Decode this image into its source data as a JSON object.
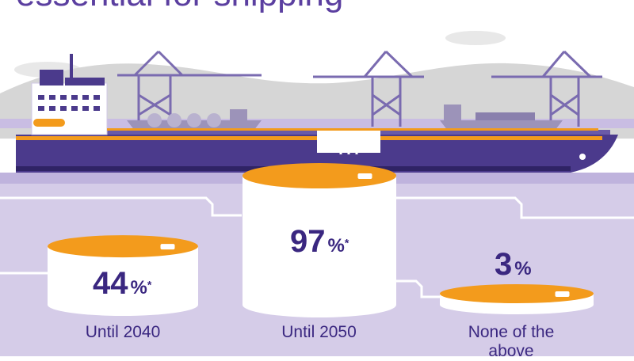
{
  "title": "essential for shipping",
  "colors": {
    "purple_dark": "#4b3a8c",
    "purple_light": "#d5cce8",
    "hull": "#4b3a8c",
    "orange": "#f39b1c",
    "hills": "#d6d6d6"
  },
  "bars": [
    {
      "value": "44",
      "unit": "%",
      "footnote": "*",
      "label": "Until 2040",
      "level": 0.44
    },
    {
      "value": "97",
      "unit": "%",
      "footnote": "*",
      "label": "Until 2050",
      "level": 0.97
    },
    {
      "value": "3",
      "unit": "%",
      "footnote": "",
      "label": "None of the above",
      "level": 0.03
    }
  ]
}
